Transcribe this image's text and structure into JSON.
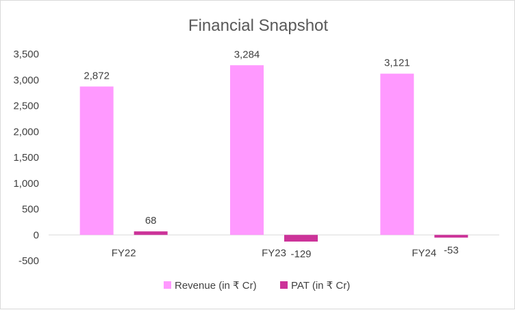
{
  "chart_data": {
    "type": "bar",
    "title": "Financial Snapshot",
    "categories": [
      "FY22",
      "FY23",
      "FY24"
    ],
    "series": [
      {
        "name": "Revenue (in ₹ Cr)",
        "values": [
          2872,
          3284,
          3121
        ],
        "color": "#ff99ff"
      },
      {
        "name": "PAT  (in ₹ Cr)",
        "values": [
          68,
          -129,
          -53
        ],
        "color": "#cc3399"
      }
    ],
    "data_labels": [
      [
        "2,872",
        "3,284",
        "3,121"
      ],
      [
        "68",
        "-129",
        "-53"
      ]
    ],
    "ylim": [
      -500,
      3500
    ],
    "yticks": [
      "3,500",
      "3,000",
      "2,500",
      "2,000",
      "1,500",
      "1,000",
      "500",
      "0",
      "-500"
    ],
    "ytick_values": [
      3500,
      3000,
      2500,
      2000,
      1500,
      1000,
      500,
      0,
      -500
    ],
    "legend": "bottom",
    "grid": false
  }
}
